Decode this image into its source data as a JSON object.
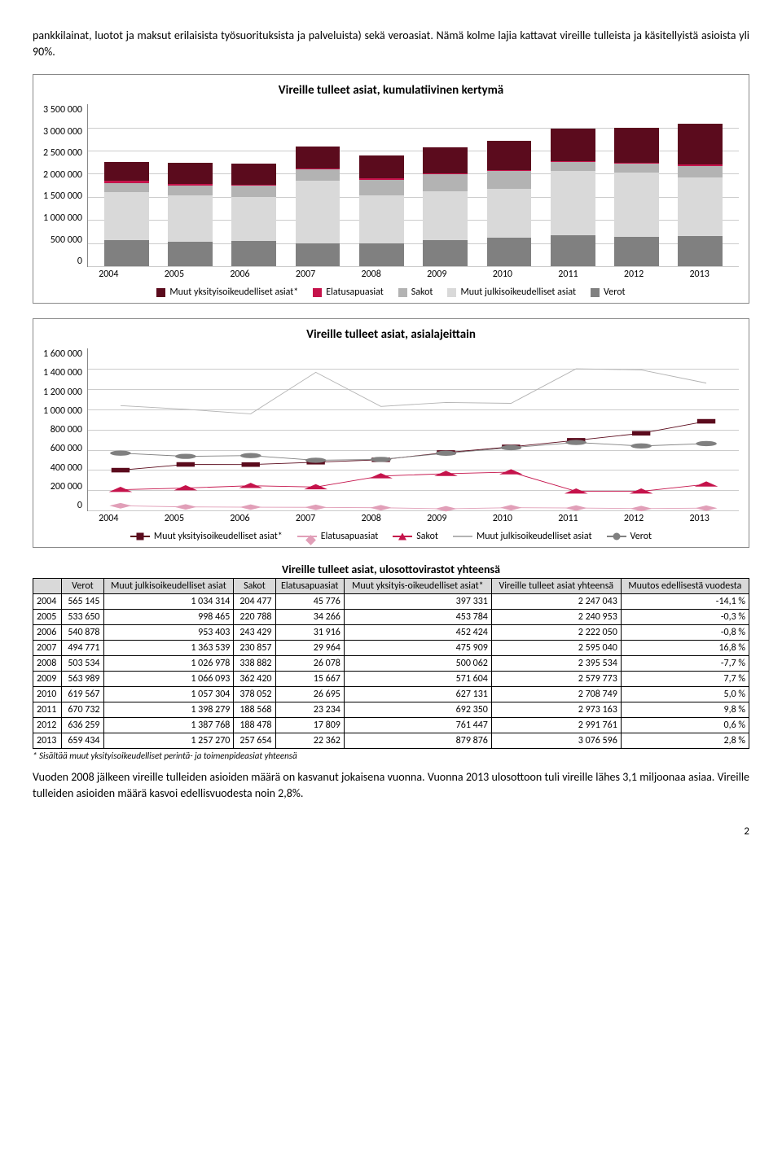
{
  "intro": "pankkilainat, luotot ja maksut erilaisista työsuorituksista ja palveluista) sekä veroasiat. Nämä kolme lajia kattavat vireille tulleista ja käsitellyistä asioista yli 90%.",
  "chart1": {
    "title": "Vireille tulleet asiat, kumulatiivinen kertymä",
    "ymax": 3500000,
    "yticks": [
      "3 500 000",
      "3 000 000",
      "2 500 000",
      "2 000 000",
      "1 500 000",
      "1 000 000",
      "500 000",
      "0"
    ],
    "years": [
      "2004",
      "2005",
      "2006",
      "2007",
      "2008",
      "2009",
      "2010",
      "2011",
      "2012",
      "2013"
    ],
    "series": {
      "muut_yks": {
        "label": "Muut yksityisoikeudelliset asiat*",
        "color": "#5b0b1d"
      },
      "elatus": {
        "label": "Elatusapuasiat",
        "color": "#c5134b"
      },
      "sakot": {
        "label": "Sakot",
        "color": "#b3b3b3"
      },
      "muut_julk": {
        "label": "Muut julkisoikeudelliset asiat",
        "color": "#d9d9d9"
      },
      "verot": {
        "label": "Verot",
        "color": "#808080"
      }
    },
    "stack_order": [
      "verot",
      "muut_julk",
      "sakot",
      "elatus",
      "muut_yks"
    ],
    "data": {
      "verot": [
        565145,
        533650,
        540878,
        494771,
        503534,
        563989,
        619567,
        670732,
        636259,
        659434
      ],
      "muut_julk": [
        1034314,
        998465,
        953403,
        1363539,
        1026978,
        1066093,
        1057304,
        1398279,
        1387768,
        1257270
      ],
      "sakot": [
        204477,
        220788,
        243429,
        230857,
        338882,
        362420,
        378052,
        188568,
        188478,
        257654
      ],
      "elatus": [
        45776,
        34266,
        31916,
        29964,
        26078,
        15667,
        26695,
        23234,
        17809,
        22362
      ],
      "muut_yks": [
        397331,
        453784,
        452424,
        475909,
        500062,
        571604,
        627131,
        692350,
        761447,
        879876
      ]
    }
  },
  "chart2": {
    "title": "Vireille tulleet asiat, asialajeittain",
    "ymax": 1600000,
    "yticks": [
      "1 600 000",
      "1 400 000",
      "1 200 000",
      "1 000 000",
      "800 000",
      "600 000",
      "400 000",
      "200 000",
      "0"
    ],
    "years": [
      "2004",
      "2005",
      "2006",
      "2007",
      "2008",
      "2009",
      "2010",
      "2011",
      "2012",
      "2013"
    ],
    "series": [
      {
        "key": "muut_yks",
        "label": "Muut yksityisoikeudelliset asiat*",
        "color": "#5b0b1d",
        "marker": "square"
      },
      {
        "key": "elatus",
        "label": "Elatusapuasiat",
        "color": "#e19fb8",
        "marker": "diamond"
      },
      {
        "key": "sakot",
        "label": "Sakot",
        "color": "#c5134b",
        "marker": "triangle"
      },
      {
        "key": "muut_julk",
        "label": "Muut julkisoikeudelliset asiat",
        "color": "#b3b3b3",
        "marker": "line"
      },
      {
        "key": "verot",
        "label": "Verot",
        "color": "#808080",
        "marker": "circle"
      }
    ],
    "data": {
      "muut_yks": [
        397331,
        453784,
        452424,
        475909,
        500062,
        571604,
        627131,
        692350,
        761447,
        879876
      ],
      "elatus": [
        45776,
        34266,
        31916,
        29964,
        26078,
        15667,
        26695,
        23234,
        17809,
        22362
      ],
      "sakot": [
        204477,
        220788,
        243429,
        230857,
        338882,
        362420,
        378052,
        188568,
        188478,
        257654
      ],
      "muut_julk": [
        1034314,
        998465,
        953403,
        1363539,
        1026978,
        1066093,
        1057304,
        1398279,
        1387768,
        1257270
      ],
      "verot": [
        565145,
        533650,
        540878,
        494771,
        503534,
        563989,
        619567,
        670732,
        636259,
        659434
      ]
    }
  },
  "table": {
    "title": "Vireille tulleet asiat, ulosottovirastot yhteensä",
    "columns": [
      "",
      "Verot",
      "Muut julkisoikeudelliset asiat",
      "Sakot",
      "Elatusapuasiat",
      "Muut yksityis-oikeudelliset asiat*",
      "Vireille tulleet asiat yhteensä",
      "Muutos edellisestä vuodesta"
    ],
    "rows": [
      [
        "2004",
        "565 145",
        "1 034 314",
        "204 477",
        "45 776",
        "397 331",
        "2 247 043",
        "-14,1 %"
      ],
      [
        "2005",
        "533 650",
        "998 465",
        "220 788",
        "34 266",
        "453 784",
        "2 240 953",
        "-0,3 %"
      ],
      [
        "2006",
        "540 878",
        "953 403",
        "243 429",
        "31 916",
        "452 424",
        "2 222 050",
        "-0,8 %"
      ],
      [
        "2007",
        "494 771",
        "1 363 539",
        "230 857",
        "29 964",
        "475 909",
        "2 595 040",
        "16,8 %"
      ],
      [
        "2008",
        "503 534",
        "1 026 978",
        "338 882",
        "26 078",
        "500 062",
        "2 395 534",
        "-7,7 %"
      ],
      [
        "2009",
        "563 989",
        "1 066 093",
        "362 420",
        "15 667",
        "571 604",
        "2 579 773",
        "7,7 %"
      ],
      [
        "2010",
        "619 567",
        "1 057 304",
        "378 052",
        "26 695",
        "627 131",
        "2 708 749",
        "5,0 %"
      ],
      [
        "2011",
        "670 732",
        "1 398 279",
        "188 568",
        "23 234",
        "692 350",
        "2 973 163",
        "9,8 %"
      ],
      [
        "2012",
        "636 259",
        "1 387 768",
        "188 478",
        "17 809",
        "761 447",
        "2 991 761",
        "0,6 %"
      ],
      [
        "2013",
        "659 434",
        "1 257 270",
        "257 654",
        "22 362",
        "879 876",
        "3 076 596",
        "2,8 %"
      ]
    ],
    "footnote": "* Sisältää muut yksityisoikeudelliset perintä- ja toimenpideasiat yhteensä"
  },
  "outro": "Vuoden 2008 jälkeen vireille tulleiden asioiden määrä on kasvanut jokaisena vuonna. Vuonna 2013 ulosottoon tuli vireille lähes 3,1 miljoonaa asiaa. Vireille tulleiden asioiden määrä kasvoi edellisvuodesta noin 2,8%.",
  "page": "2"
}
